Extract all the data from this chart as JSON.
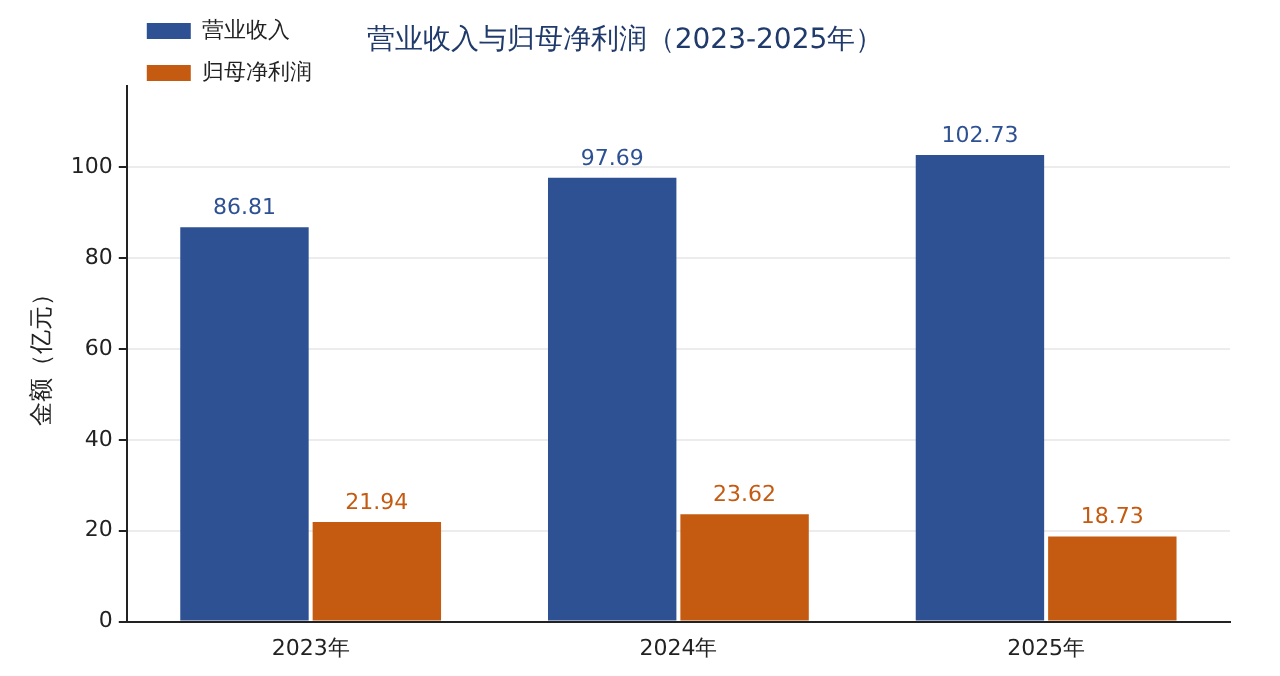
{
  "chart_data": {
    "type": "bar",
    "title": "营业收入与归母净利润（2023-2025年）",
    "ylabel": "金额（亿元）",
    "categories": [
      "2023年",
      "2024年",
      "2025年"
    ],
    "series": [
      {
        "name": "营业收入",
        "color": "#2e5193",
        "values": [
          86.81,
          97.69,
          102.73
        ]
      },
      {
        "name": "归母净利润",
        "color": "#c55a11",
        "values": [
          21.94,
          23.62,
          18.73
        ]
      }
    ],
    "ylim": [
      0,
      118
    ],
    "yticks": [
      0,
      20,
      40,
      60,
      80,
      100
    ],
    "grid": "y",
    "legend": "top left",
    "data_labels": true
  }
}
